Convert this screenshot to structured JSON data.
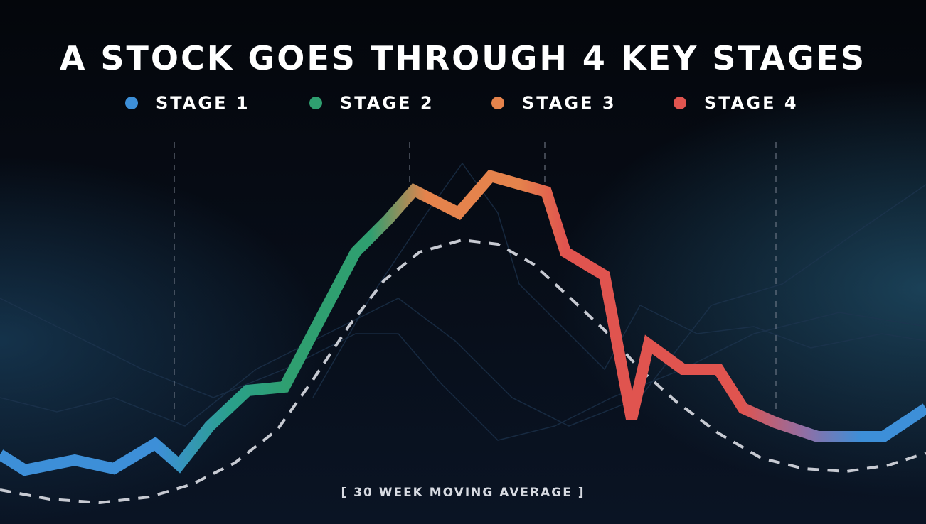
{
  "header": {
    "title": "A STOCK GOES THROUGH 4 KEY STAGES"
  },
  "legend": [
    {
      "label": "STAGE 1",
      "color": "#3d8fd8"
    },
    {
      "label": "STAGE 2",
      "color": "#2f9f70"
    },
    {
      "label": "STAGE 3",
      "color": "#e5834c"
    },
    {
      "label": "STAGE 4",
      "color": "#e0544f"
    }
  ],
  "annotation": "[ 30 WEEK MOVING AVERAGE ]"
}
